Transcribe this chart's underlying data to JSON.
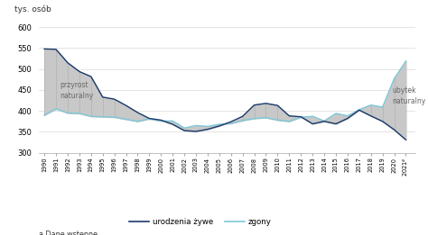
{
  "years": [
    1990,
    1991,
    1992,
    1993,
    1994,
    1995,
    1996,
    1997,
    1998,
    1999,
    2000,
    2001,
    2002,
    2003,
    2004,
    2005,
    2006,
    2007,
    2008,
    2009,
    2010,
    2011,
    2012,
    2013,
    2014,
    2015,
    2016,
    2017,
    2018,
    2019,
    2020,
    2021
  ],
  "urodzenia": [
    548,
    547,
    515,
    494,
    482,
    433,
    428,
    413,
    396,
    382,
    378,
    368,
    353,
    351,
    356,
    364,
    374,
    387,
    414,
    418,
    413,
    388,
    386,
    369,
    375,
    369,
    382,
    402,
    388,
    375,
    355,
    331
  ],
  "zgony": [
    390,
    405,
    395,
    394,
    387,
    386,
    385,
    380,
    375,
    381,
    376,
    376,
    359,
    365,
    363,
    368,
    370,
    377,
    382,
    384,
    378,
    375,
    385,
    387,
    376,
    394,
    388,
    403,
    414,
    409,
    477,
    519
  ],
  "births_color": "#1a3a6b",
  "deaths_color": "#7ec8d8",
  "fill_color": "#c8c8c8",
  "vline_color": "#b8b8b8",
  "grid_color": "#d8d8d8",
  "ylabel": "tys. osób",
  "ylim": [
    300,
    620
  ],
  "yticks": [
    300,
    350,
    400,
    450,
    500,
    550,
    600
  ],
  "footnote": "a Dane wstępne.",
  "legend_births": "urodzenia żywe",
  "legend_deaths": "zgony",
  "annot_przyrost": "przyrost\nnaturalny",
  "annot_ubytek": "ubytek\nnaturalny",
  "background_color": "#ffffff",
  "vlines_przyrost": [
    1990,
    1991,
    1992,
    1993,
    1994,
    1995,
    1996
  ],
  "vlines_ubytek": [
    2017,
    2018,
    2019,
    2020
  ],
  "vlines_middle": [
    2007,
    2008,
    2009,
    2010
  ]
}
